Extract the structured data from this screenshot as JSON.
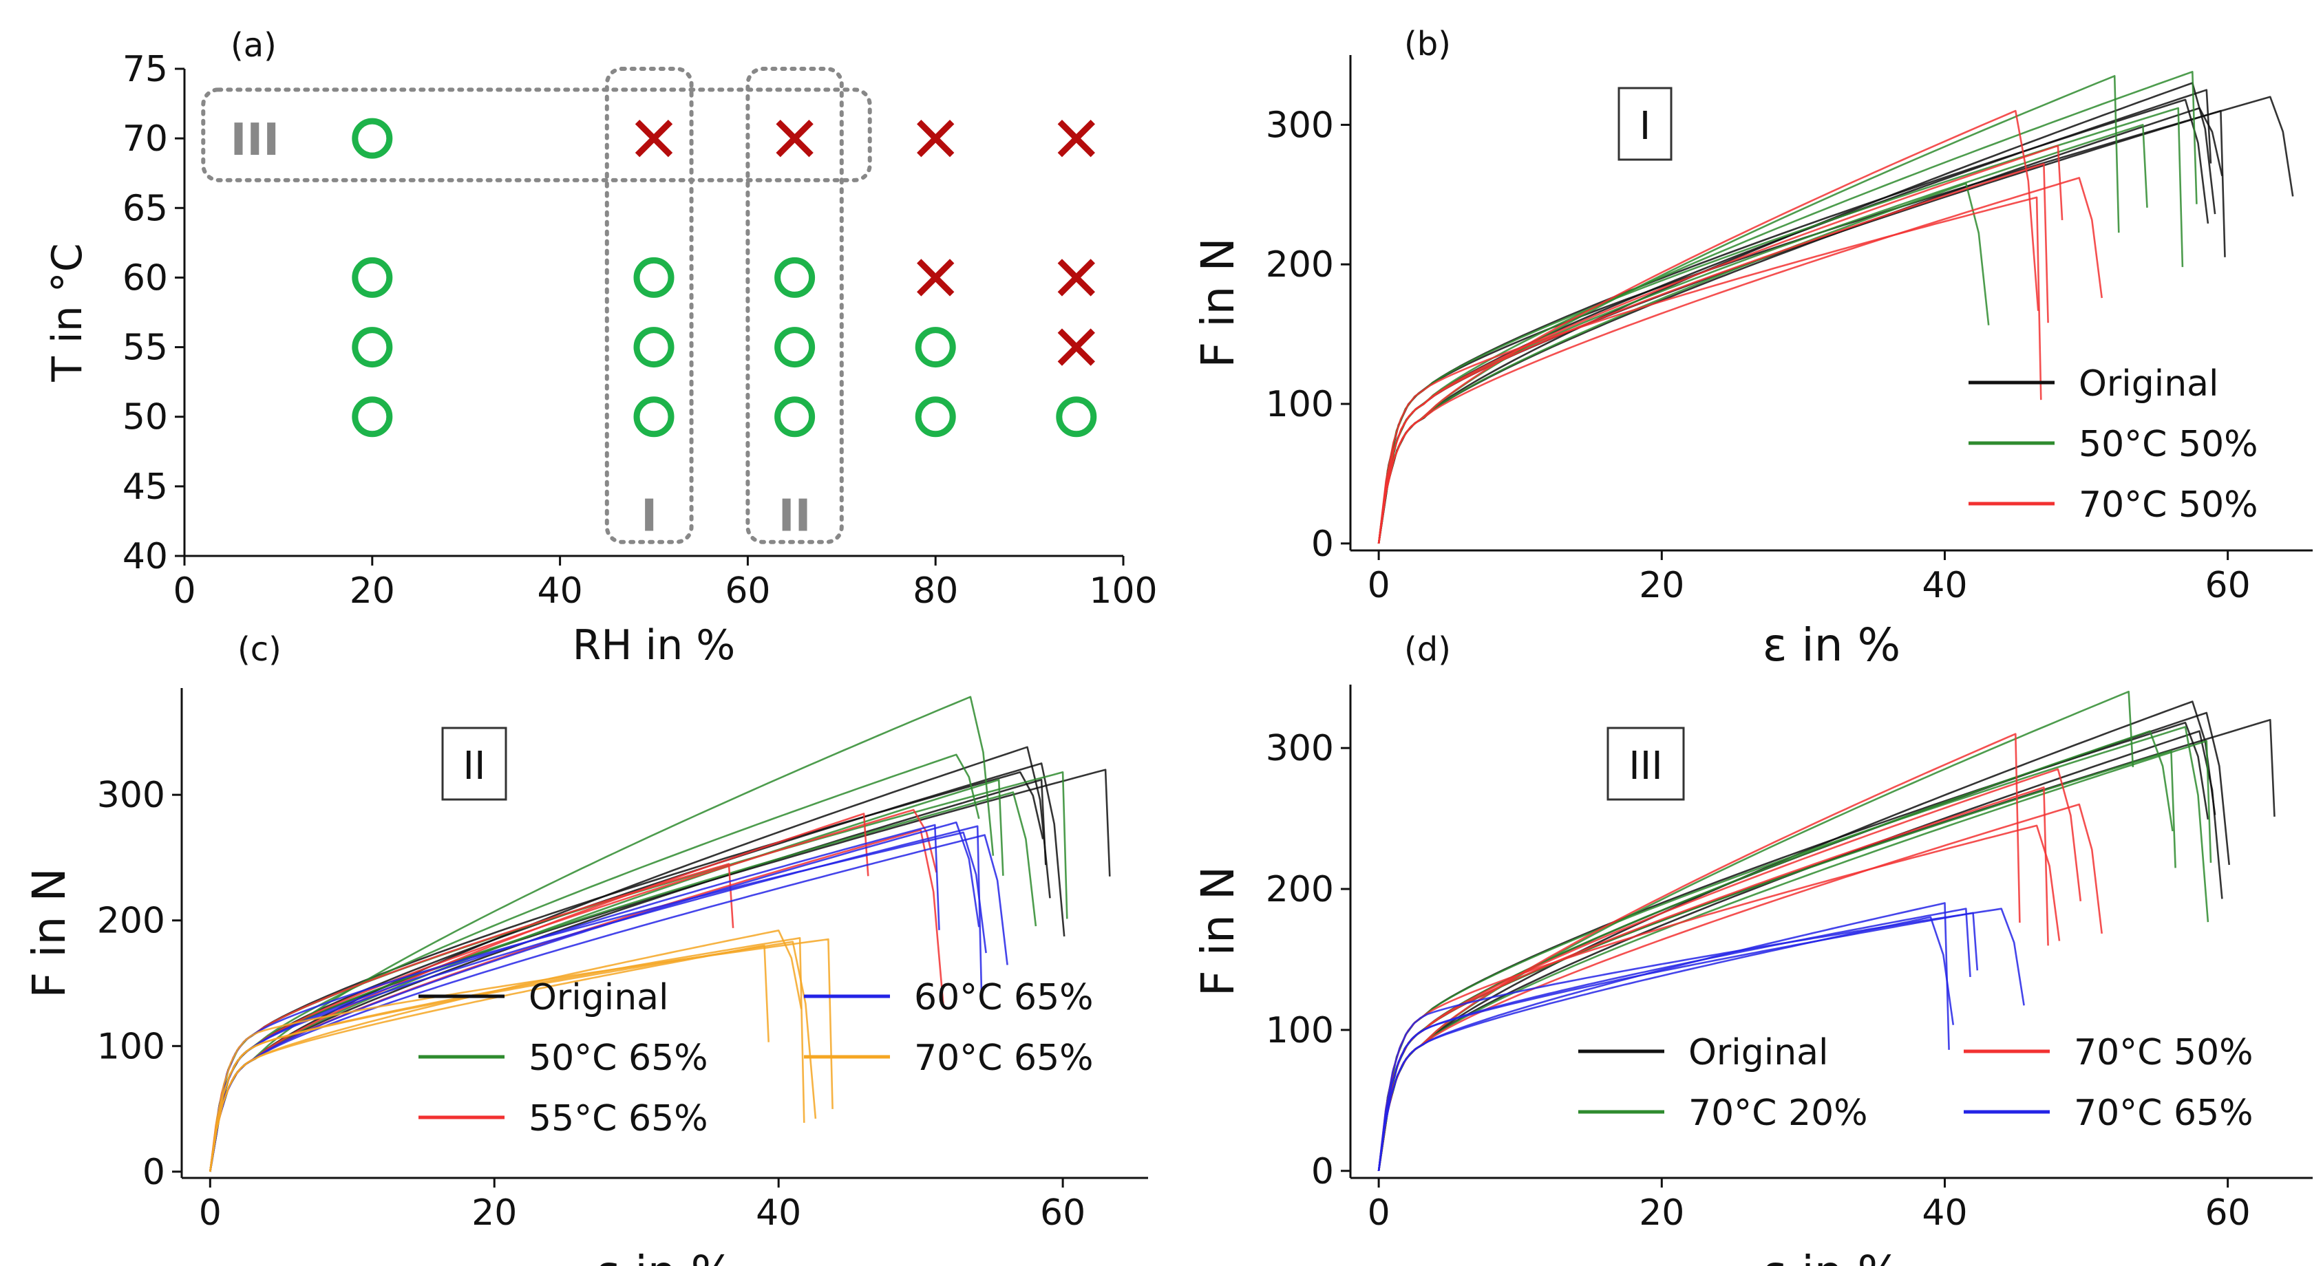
{
  "chart_data": [
    {
      "id": "a",
      "type": "scatter",
      "panel_label": "(a)",
      "xlabel": "RH in %",
      "ylabel": "T in °C",
      "xlim": [
        0,
        100
      ],
      "ylim": [
        40,
        75
      ],
      "xticks": [
        0,
        20,
        40,
        60,
        80,
        100
      ],
      "yticks": [
        40,
        45,
        50,
        55,
        60,
        65,
        70,
        75
      ],
      "tick_labels_x": [
        "0",
        "20",
        "40",
        "60",
        "80",
        "100"
      ],
      "tick_labels_y": [
        "40",
        "45",
        "50",
        "55",
        "60",
        "65",
        "70",
        "75"
      ],
      "points": [
        {
          "rh": 20,
          "t": 70,
          "result": "pass"
        },
        {
          "rh": 20,
          "t": 60,
          "result": "pass"
        },
        {
          "rh": 20,
          "t": 55,
          "result": "pass"
        },
        {
          "rh": 20,
          "t": 50,
          "result": "pass"
        },
        {
          "rh": 50,
          "t": 70,
          "result": "fail"
        },
        {
          "rh": 50,
          "t": 60,
          "result": "pass"
        },
        {
          "rh": 50,
          "t": 55,
          "result": "pass"
        },
        {
          "rh": 50,
          "t": 50,
          "result": "pass"
        },
        {
          "rh": 65,
          "t": 70,
          "result": "fail"
        },
        {
          "rh": 65,
          "t": 60,
          "result": "pass"
        },
        {
          "rh": 65,
          "t": 55,
          "result": "pass"
        },
        {
          "rh": 65,
          "t": 50,
          "result": "pass"
        },
        {
          "rh": 80,
          "t": 70,
          "result": "fail"
        },
        {
          "rh": 80,
          "t": 60,
          "result": "fail"
        },
        {
          "rh": 80,
          "t": 55,
          "result": "pass"
        },
        {
          "rh": 80,
          "t": 50,
          "result": "pass"
        },
        {
          "rh": 95,
          "t": 70,
          "result": "fail"
        },
        {
          "rh": 95,
          "t": 60,
          "result": "fail"
        },
        {
          "rh": 95,
          "t": 55,
          "result": "fail"
        },
        {
          "rh": 95,
          "t": 50,
          "result": "pass"
        }
      ],
      "groups": [
        {
          "label": "I",
          "rh_range": [
            45,
            54
          ],
          "t_range": [
            41,
            75
          ]
        },
        {
          "label": "II",
          "rh_range": [
            60,
            70
          ],
          "t_range": [
            41,
            75
          ]
        },
        {
          "label": "III",
          "rh_range": [
            2,
            73
          ],
          "t_range": [
            67,
            73.5
          ]
        }
      ],
      "colors": {
        "pass": "#1db34a",
        "fail": "#b50c0c",
        "group": "#888888"
      }
    },
    {
      "id": "b",
      "type": "line",
      "panel_label": "(b)",
      "group_label": "I",
      "xlabel": "ε in %",
      "ylabel": "F in N",
      "xlim": [
        -2,
        66
      ],
      "ylim": [
        -5,
        350
      ],
      "xticks": [
        0,
        20,
        40,
        60
      ],
      "yticks": [
        0,
        100,
        200,
        300
      ],
      "tick_labels_x": [
        "0",
        "20",
        "40",
        "60"
      ],
      "tick_labels_y": [
        "0",
        "100",
        "200",
        "300"
      ],
      "legend": {
        "position": "lower-right",
        "columns": 1,
        "entries": [
          "Original",
          "50°C 50%",
          "70°C 50%"
        ]
      },
      "series": [
        {
          "name": "Original",
          "color": "#111111",
          "curves": [
            [
              57.5,
              330
            ],
            [
              58.5,
              325
            ],
            [
              57,
              318
            ],
            [
              58,
              312
            ],
            [
              59.5,
              310
            ],
            [
              63,
              320
            ]
          ]
        },
        {
          "name": "50°C 50%",
          "color": "#2e8b2e",
          "curves": [
            [
              52,
              335
            ],
            [
              57.5,
              338
            ],
            [
              56.5,
              312
            ],
            [
              41.5,
              258
            ],
            [
              54,
              300
            ]
          ]
        },
        {
          "name": "70°C 50%",
          "color": "#f23131",
          "curves": [
            [
              45,
              310
            ],
            [
              48,
              285
            ],
            [
              46.5,
              248
            ],
            [
              49.5,
              262
            ],
            [
              47,
              272
            ]
          ]
        }
      ]
    },
    {
      "id": "c",
      "type": "line",
      "panel_label": "(c)",
      "group_label": "II",
      "xlabel": "ε in %",
      "ylabel": "F in N",
      "xlim": [
        -2,
        66
      ],
      "ylim": [
        -5,
        385
      ],
      "xticks": [
        0,
        20,
        40,
        60
      ],
      "yticks": [
        0,
        100,
        200,
        300
      ],
      "tick_labels_x": [
        "0",
        "20",
        "40",
        "60"
      ],
      "tick_labels_y": [
        "0",
        "100",
        "200",
        "300"
      ],
      "legend": {
        "position": "lower-center",
        "columns": 2,
        "entries": [
          "Original",
          "50°C 65%",
          "55°C 65%",
          "60°C 65%",
          "70°C 65%"
        ]
      },
      "series": [
        {
          "name": "Original",
          "color": "#111111",
          "curves": [
            [
              57.5,
              338
            ],
            [
              58.5,
              325
            ],
            [
              57,
              318
            ],
            [
              58.5,
              312
            ],
            [
              63,
              320
            ]
          ]
        },
        {
          "name": "50°C 65%",
          "color": "#2e8b2e",
          "curves": [
            [
              53.5,
              378
            ],
            [
              52.5,
              332
            ],
            [
              60,
              318
            ],
            [
              55.5,
              312
            ],
            [
              56.5,
              302
            ]
          ]
        },
        {
          "name": "55°C 65%",
          "color": "#f23131",
          "curves": [
            [
              46,
              285
            ],
            [
              49.5,
              288
            ],
            [
              36.5,
              245
            ],
            [
              50,
              272
            ]
          ]
        },
        {
          "name": "60°C 65%",
          "color": "#2424e6",
          "curves": [
            [
              52.5,
              278
            ],
            [
              54,
              275
            ],
            [
              53,
              270
            ],
            [
              54.5,
              268
            ],
            [
              51,
              276
            ]
          ]
        },
        {
          "name": "70°C 65%",
          "color": "#f5a623",
          "curves": [
            [
              40,
              192
            ],
            [
              41.5,
              186
            ],
            [
              43.5,
              185
            ],
            [
              39,
              180
            ],
            [
              41,
              183
            ]
          ]
        }
      ]
    },
    {
      "id": "d",
      "type": "line",
      "panel_label": "(d)",
      "group_label": "III",
      "xlabel": "ε in %",
      "ylabel": "F in N",
      "xlim": [
        -2,
        66
      ],
      "ylim": [
        -5,
        345
      ],
      "xticks": [
        0,
        20,
        40,
        60
      ],
      "yticks": [
        0,
        100,
        200,
        300
      ],
      "tick_labels_x": [
        "0",
        "20",
        "40",
        "60"
      ],
      "tick_labels_y": [
        "0",
        "100",
        "200",
        "300"
      ],
      "legend": {
        "position": "lower-right",
        "columns": 2,
        "entries": [
          "Original",
          "70°C 20%",
          "70°C 50%",
          "70°C 65%"
        ]
      },
      "series": [
        {
          "name": "Original",
          "color": "#111111",
          "curves": [
            [
              57.5,
              333
            ],
            [
              58.5,
              325
            ],
            [
              57,
              318
            ],
            [
              58,
              312
            ],
            [
              63,
              320
            ]
          ]
        },
        {
          "name": "70°C 20%",
          "color": "#2e8b2e",
          "curves": [
            [
              53,
              340
            ],
            [
              54.5,
              312
            ],
            [
              57,
              315
            ],
            [
              58.5,
              305
            ],
            [
              56,
              298
            ]
          ]
        },
        {
          "name": "70°C 50%",
          "color": "#f23131",
          "curves": [
            [
              45,
              310
            ],
            [
              48,
              285
            ],
            [
              46.5,
              245
            ],
            [
              49.5,
              260
            ],
            [
              47,
              272
            ]
          ]
        },
        {
          "name": "70°C 65%",
          "color": "#2424e6",
          "curves": [
            [
              40,
              190
            ],
            [
              41.5,
              186
            ],
            [
              44,
              186
            ],
            [
              39,
              180
            ],
            [
              42,
              183
            ]
          ]
        }
      ]
    }
  ]
}
